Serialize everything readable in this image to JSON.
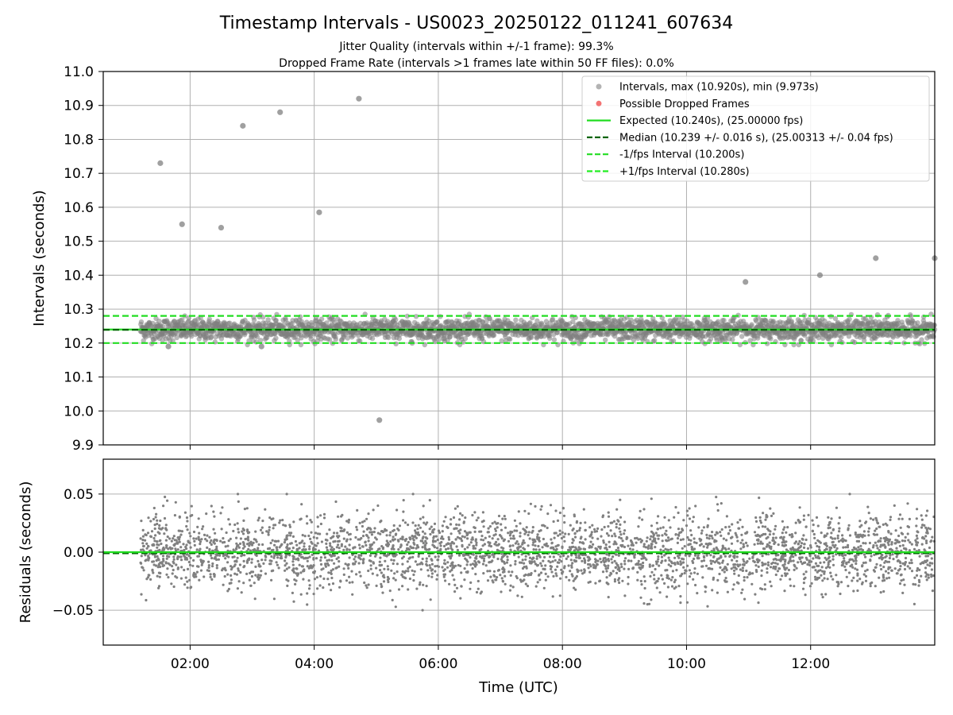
{
  "chart_data": {
    "title": "Timestamp Intervals - US0023_20250122_011241_607634",
    "subtitle_1": "Jitter Quality (intervals within +/-1 frame): 99.3%",
    "subtitle_2": "Dropped Frame Rate (intervals >1 frames late within 50 FF files): 0.0%",
    "x_axis": {
      "label": "Time (UTC)",
      "range_hours": [
        0.6,
        14.0
      ],
      "ticks": [
        {
          "value": 2,
          "label": "02:00"
        },
        {
          "value": 4,
          "label": "04:00"
        },
        {
          "value": 6,
          "label": "06:00"
        },
        {
          "value": 8,
          "label": "08:00"
        },
        {
          "value": 10,
          "label": "10:00"
        },
        {
          "value": 12,
          "label": "12:00"
        }
      ]
    },
    "top_panel": {
      "type": "scatter",
      "ylabel": "Intervals (seconds)",
      "ylim": [
        9.9,
        11.0
      ],
      "y_ticks": [
        "9.9",
        "10.0",
        "10.1",
        "10.2",
        "10.3",
        "10.4",
        "10.5",
        "10.6",
        "10.7",
        "10.8",
        "10.9",
        "11.0"
      ],
      "grid": true,
      "legend_position": "top-right",
      "legend": [
        {
          "label": "Intervals, max (10.920s), min (9.973s)",
          "kind": "marker",
          "color": "#808080"
        },
        {
          "label": "Possible Dropped Frames",
          "kind": "marker",
          "color": "#f05050"
        },
        {
          "label": "Expected (10.240s), (25.00000 fps)",
          "kind": "solid",
          "color": "#22dd22"
        },
        {
          "label": "Median (10.239 +/- 0.016 s), (25.00313 +/- 0.04 fps)",
          "kind": "dashed",
          "color": "#006400"
        },
        {
          "label": "-1/fps Interval (10.200s)",
          "kind": "dashed",
          "color": "#22dd22"
        },
        {
          "label": "+1/fps Interval (10.280s)",
          "kind": "dashed",
          "color": "#22ee22"
        }
      ],
      "reference_lines": {
        "expected": 10.24,
        "median": 10.239,
        "lower": 10.2,
        "upper": 10.28
      },
      "bulk_band": {
        "x_start": 1.2,
        "x_end": 14.0,
        "center": 10.24,
        "spread": 0.016
      },
      "outliers": [
        {
          "x": 1.52,
          "y": 10.73
        },
        {
          "x": 1.65,
          "y": 10.19
        },
        {
          "x": 1.87,
          "y": 10.55
        },
        {
          "x": 2.5,
          "y": 10.54
        },
        {
          "x": 2.85,
          "y": 10.84
        },
        {
          "x": 3.15,
          "y": 10.19
        },
        {
          "x": 3.45,
          "y": 10.88
        },
        {
          "x": 4.08,
          "y": 10.585
        },
        {
          "x": 4.72,
          "y": 10.92
        },
        {
          "x": 5.05,
          "y": 9.973
        },
        {
          "x": 10.95,
          "y": 10.38
        },
        {
          "x": 12.15,
          "y": 10.4
        },
        {
          "x": 13.05,
          "y": 10.45
        },
        {
          "x": 14.0,
          "y": 10.45
        }
      ]
    },
    "bottom_panel": {
      "type": "scatter",
      "ylabel": "Residuals (seconds)",
      "ylim": [
        -0.08,
        0.08
      ],
      "y_ticks": [
        {
          "value": 0.05,
          "label": "0.05"
        },
        {
          "value": 0.0,
          "label": "0.00"
        },
        {
          "value": -0.05,
          "label": "−0.05"
        }
      ],
      "grid": true,
      "residual_spread": 0.016,
      "reference_lines": {
        "expected": 0.0,
        "median": -0.001
      }
    },
    "colors": {
      "points": "#808080",
      "expected": "#22dd22",
      "median": "#006400",
      "bounds": "#22dd22",
      "grid": "#b0b0b0"
    }
  }
}
